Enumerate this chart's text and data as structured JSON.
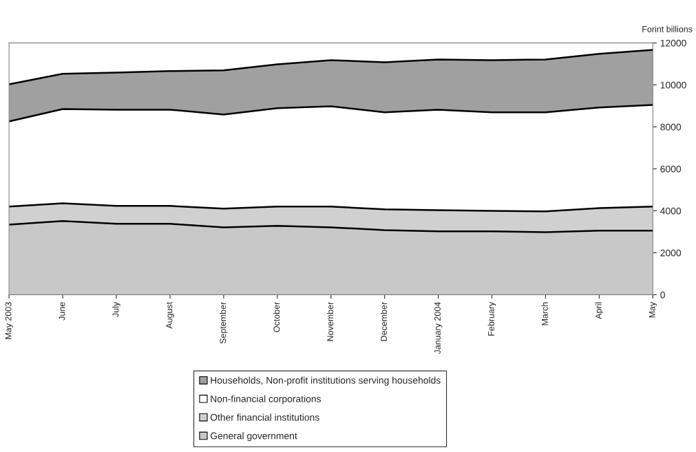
{
  "chart_data": {
    "type": "area",
    "stacked": true,
    "ylabel": "Forint billions",
    "categories": [
      "May 2003",
      "June",
      "July",
      "August",
      "September",
      "October",
      "November",
      "December",
      "January 2004",
      "February",
      "March",
      "April",
      "May"
    ],
    "series": [
      {
        "name": "General government",
        "color": "#c8c8c8",
        "values": [
          3340,
          3510,
          3380,
          3380,
          3210,
          3280,
          3210,
          3080,
          3020,
          3020,
          2980,
          3050,
          3050
        ]
      },
      {
        "name": "Other financial institutions",
        "color": "#d0d0d0",
        "values": [
          860,
          850,
          850,
          850,
          890,
          920,
          990,
          990,
          1010,
          980,
          990,
          1080,
          1150
        ]
      },
      {
        "name": "Non-financial corporations",
        "color": "#ffffff",
        "values": [
          4060,
          4490,
          4590,
          4590,
          4490,
          4690,
          4780,
          4620,
          4790,
          4690,
          4720,
          4790,
          4850
        ]
      },
      {
        "name": "Households, Non-profit institutions serving households",
        "color": "#a0a0a0",
        "values": [
          1770,
          1680,
          1770,
          1840,
          2100,
          2090,
          2200,
          2390,
          2390,
          2490,
          2520,
          2560,
          2620
        ]
      }
    ],
    "ylim": [
      0,
      12000
    ],
    "yticks": [
      0,
      2000,
      4000,
      6000,
      8000,
      10000,
      12000
    ],
    "grid": false,
    "legend": "bottom"
  }
}
